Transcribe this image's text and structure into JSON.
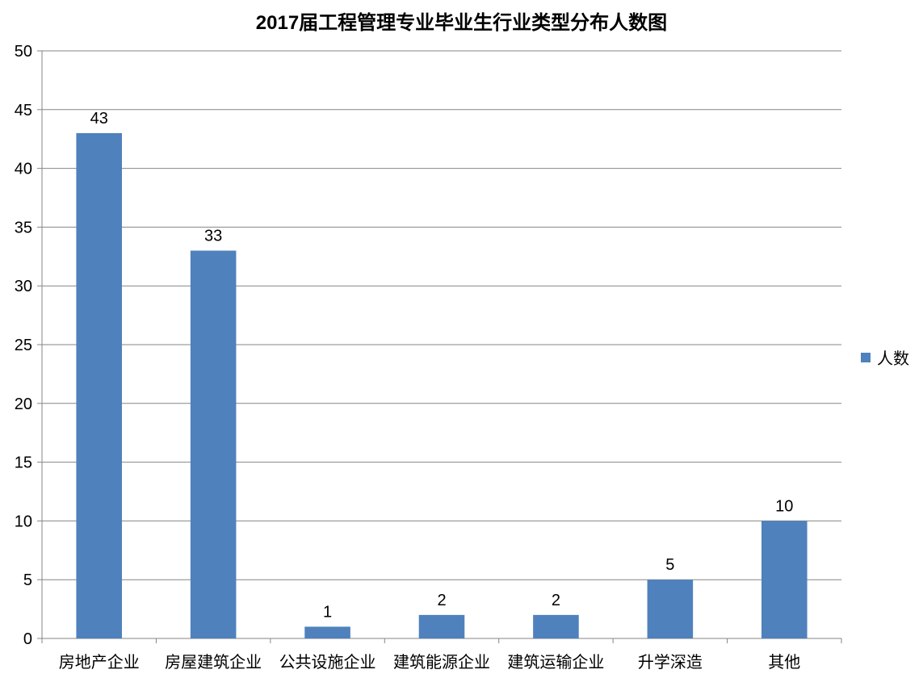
{
  "chart_data": {
    "type": "bar",
    "title": "2017届工程管理专业毕业生行业类型分布人数图",
    "xlabel": "",
    "ylabel": "",
    "categories": [
      "房地产企业",
      "房屋建筑企业",
      "公共设施企业",
      "建筑能源企业",
      "建筑运输企业",
      "升学深造",
      "其他"
    ],
    "series": [
      {
        "name": "人数",
        "values": [
          43,
          33,
          1,
          2,
          2,
          5,
          10
        ],
        "color": "#4f81bd"
      }
    ],
    "ylim": [
      0,
      50
    ],
    "yticks": [
      0,
      5,
      10,
      15,
      20,
      25,
      30,
      35,
      40,
      45,
      50
    ],
    "grid": true,
    "legend_position": "right",
    "data_labels": true
  }
}
